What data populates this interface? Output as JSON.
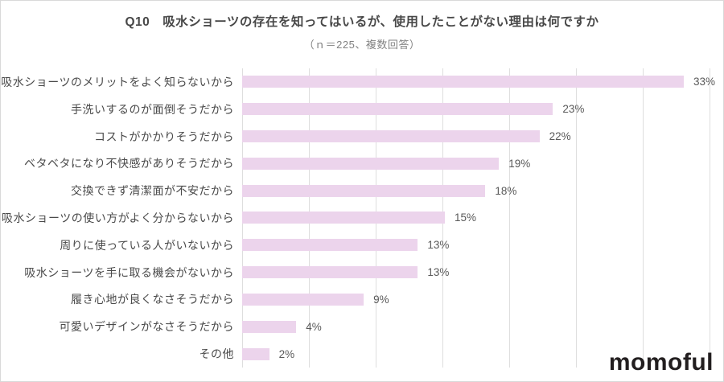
{
  "chart_data": {
    "type": "bar",
    "orientation": "horizontal",
    "title": "Q10　吸水ショーツの存在を知ってはいるが、使用したことがない理由は何ですか",
    "subtitle": "（ｎ＝225、複数回答）",
    "categories": [
      "吸水ショーツのメリットをよく知らないから",
      "手洗いするのが面倒そうだから",
      "コストがかかりそうだから",
      "ベタベタになり不快感がありそうだから",
      "交換できず清潔面が不安だから",
      "吸水ショーツの使い方がよく分からないから",
      "周りに使っている人がいないから",
      "吸水ショーツを手に取る機会がないから",
      "履き心地が良くなさそうだから",
      "可愛いデザインがなさそうだから",
      "その他"
    ],
    "values": [
      33,
      23,
      22,
      19,
      18,
      15,
      13,
      13,
      9,
      4,
      2
    ],
    "value_labels": [
      "33%",
      "23%",
      "22%",
      "19%",
      "18%",
      "15%",
      "13%",
      "13%",
      "9%",
      "4%",
      "2%"
    ],
    "xlim": [
      0,
      35
    ],
    "gridline_step": 5,
    "grid": true,
    "legend": "none"
  },
  "colors": {
    "bar": "#ecd4ec",
    "gridline": "#dedede",
    "title_text": "#484848",
    "subtitle_text": "#828282",
    "category_text": "#4a4a4a",
    "value_text": "#595959",
    "logo_text": "#221e1f",
    "frame_border": "#d9d9d9",
    "background": "#ffffff"
  },
  "branding": {
    "logo_text": "momoful"
  }
}
